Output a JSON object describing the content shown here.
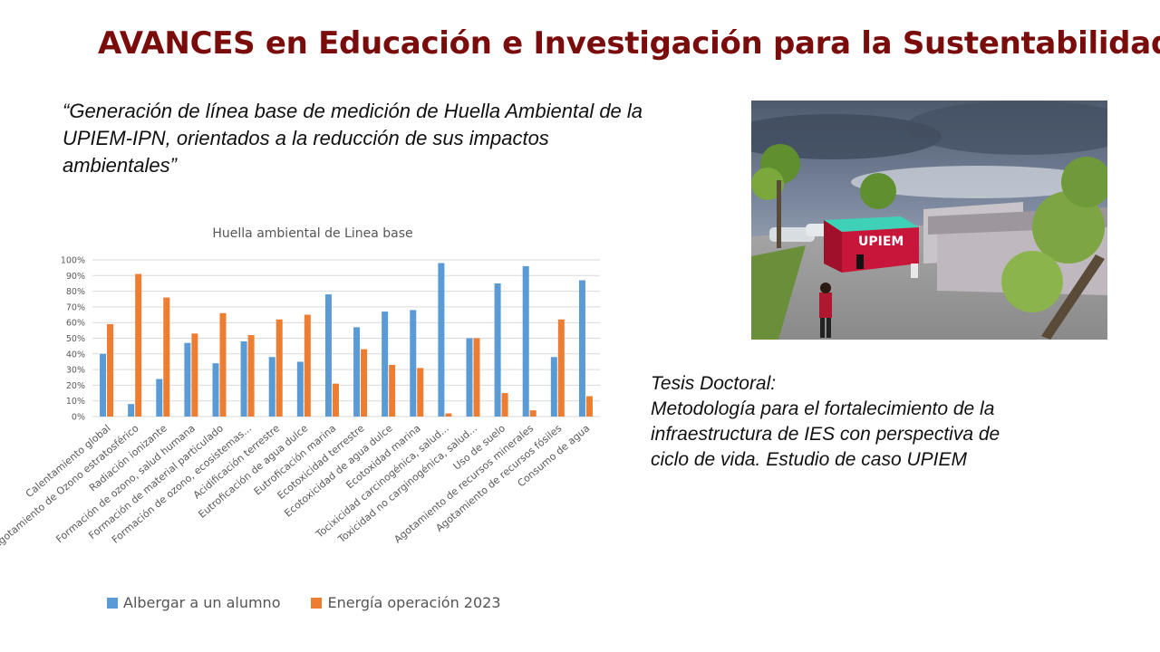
{
  "slide": {
    "title": "AVANCES en Educación e Investigación para la Sustentabilidad",
    "quote_line1": "“Generación de línea base de medición de Huella Ambiental de la",
    "quote_line2": "UPIEM-IPN, orientados a la reducción de sus impactos",
    "quote_line3": "ambientales”",
    "thesis_label": "Tesis Doctoral:",
    "thesis_line1": "Metodología para el fortalecimiento de la",
    "thesis_line2": "infraestructura de IES con perspectiva de",
    "thesis_line3": "ciclo de vida. Estudio de caso UPIEM",
    "photo_sign": "UPIEM"
  },
  "chart_data": {
    "type": "bar",
    "title": "Huella ambiental de Linea base",
    "ylim": [
      0,
      100
    ],
    "ytick_labels": [
      "0%",
      "10%",
      "20%",
      "30%",
      "40%",
      "50%",
      "60%",
      "70%",
      "80%",
      "90%",
      "100%"
    ],
    "grid": true,
    "legend_position": "bottom",
    "categories": [
      "Calentamiento global",
      "Agotamiento de Ozono estratosférico",
      "Radiación ionizante",
      "Formación de ozono, salud humana",
      "Formación de material particulado",
      "Formación de ozono, ecosistemas...",
      "Acidificación terrestre",
      "Eutroficación de agua dulce",
      "Eutroficación marina",
      "Ecotoxicidad terrestre",
      "Ecotoxicidad de agua dulce",
      "Ecotoxidad marina",
      "Tocixicidad carcinogénica, salud...",
      "Toxicidad no carginogénica, salud...",
      "Uso de suelo",
      "Agotamiento de recursos minerales",
      "Agotamiento de recursos fósiles",
      "Consumo de agua"
    ],
    "series": [
      {
        "name": "Albergar a un alumno",
        "color": "#5b9bd5",
        "values": [
          40,
          8,
          24,
          47,
          34,
          48,
          38,
          35,
          78,
          57,
          67,
          68,
          98,
          50,
          85,
          96,
          38,
          87
        ]
      },
      {
        "name": "Energía operación 2023",
        "color": "#ed7d31",
        "values": [
          59,
          91,
          76,
          53,
          66,
          52,
          62,
          65,
          21,
          43,
          33,
          31,
          2,
          50,
          15,
          4,
          62,
          13
        ]
      }
    ]
  }
}
